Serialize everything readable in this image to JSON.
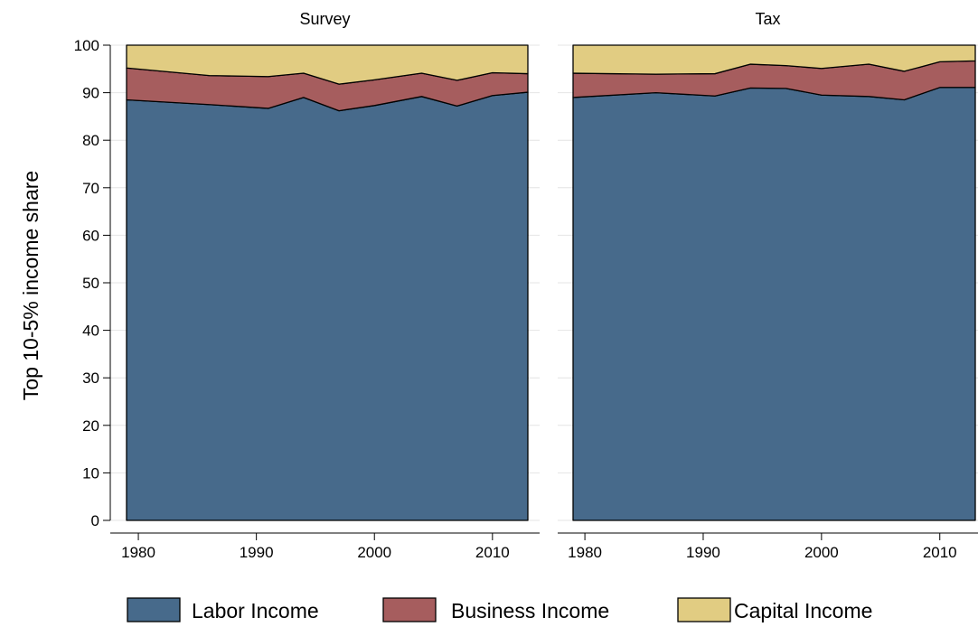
{
  "chart_data": {
    "type": "area",
    "stacked": true,
    "ylabel": "Top 10-5% income share",
    "ylim": [
      0,
      100
    ],
    "yticks": [
      0,
      10,
      20,
      30,
      40,
      50,
      60,
      70,
      80,
      90,
      100
    ],
    "xlim": [
      1979,
      2013
    ],
    "xticks": [
      1980,
      1990,
      2000,
      2010
    ],
    "grid": true,
    "legend_position": "bottom",
    "colors": {
      "labor": "#476a8b",
      "business": "#a65d5e",
      "capital": "#e1cc82"
    },
    "legend": [
      {
        "key": "labor",
        "label": "Labor Income"
      },
      {
        "key": "business",
        "label": "Business Income"
      },
      {
        "key": "capital",
        "label": "Capital Income"
      }
    ],
    "panels": [
      {
        "title": "Survey",
        "x": [
          1979,
          1986,
          1991,
          1994,
          1997,
          2000,
          2004,
          2007,
          2010,
          2013
        ],
        "series": [
          {
            "key": "labor",
            "values": [
              88.5,
              87.5,
              86.7,
              89.0,
              86.2,
              87.3,
              89.2,
              87.2,
              89.4,
              90.1
            ]
          },
          {
            "key": "business",
            "values": [
              6.7,
              6.1,
              6.7,
              5.1,
              5.6,
              5.4,
              4.9,
              5.4,
              4.8,
              3.9
            ]
          },
          {
            "key": "capital",
            "values": [
              4.8,
              6.4,
              6.6,
              5.9,
              8.2,
              7.3,
              5.9,
              7.4,
              5.8,
              6.0
            ]
          }
        ]
      },
      {
        "title": "Tax",
        "x": [
          1979,
          1986,
          1991,
          1994,
          1997,
          2000,
          2004,
          2007,
          2010,
          2013
        ],
        "series": [
          {
            "key": "labor",
            "values": [
              89.0,
              90.0,
              89.3,
              91.0,
              90.9,
              89.5,
              89.2,
              88.5,
              91.1,
              91.1
            ]
          },
          {
            "key": "business",
            "values": [
              5.1,
              3.9,
              4.7,
              5.0,
              4.8,
              5.6,
              6.8,
              6.0,
              5.4,
              5.6
            ]
          },
          {
            "key": "capital",
            "values": [
              5.9,
              6.1,
              6.0,
              4.0,
              4.3,
              4.9,
              4.0,
              5.5,
              3.5,
              3.3
            ]
          }
        ]
      }
    ]
  }
}
